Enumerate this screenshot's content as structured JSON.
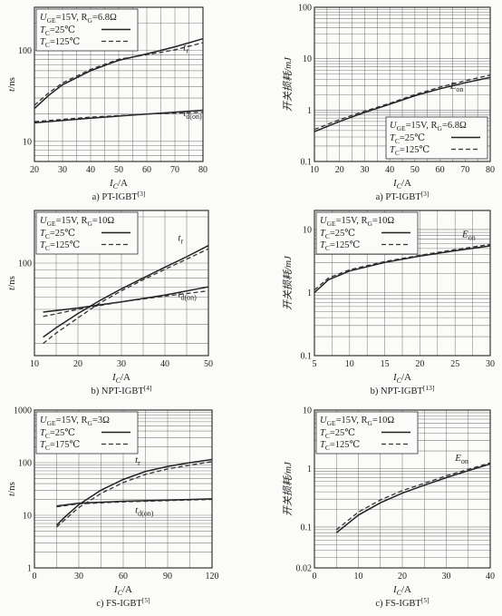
{
  "chart_data": [
    {
      "type": "line",
      "caption": "a) PT-IGBT",
      "caption_ref": "[3]",
      "xlabel": "I",
      "xlabel_sub": "C",
      "xlabel_unit": "/A",
      "ylabel": "t",
      "ylabel_unit": "/ns",
      "xlim": [
        20,
        80
      ],
      "xticks": [
        20,
        30,
        40,
        50,
        60,
        70,
        80
      ],
      "ylog": true,
      "ylim": [
        6,
        300
      ],
      "yticks": [
        10,
        100
      ],
      "yticklabels": [
        "10",
        "100"
      ],
      "legend": {
        "position": "top-left",
        "line1": "U",
        "line1_sub": "GE",
        "line1_rest": "=15V, R",
        "line1_sub2": "G",
        "line1_rest2": "=6.8Ω",
        "entries": [
          {
            "label": "T",
            "sub": "C",
            "rest": "=25℃",
            "style": "solid"
          },
          {
            "label": "T",
            "sub": "C",
            "rest": "=125℃",
            "style": "dashed"
          }
        ]
      },
      "annotations": [
        {
          "text": "t",
          "sub": "r",
          "x": 73,
          "y": 100
        },
        {
          "text": "t",
          "sub": "d(on)",
          "x": 73,
          "y": 19
        }
      ],
      "series": [
        {
          "curve": "t_r",
          "style": "solid",
          "x": [
            20,
            25,
            30,
            40,
            50,
            60,
            70,
            80
          ],
          "y": [
            23,
            32,
            42,
            60,
            78,
            92,
            110,
            135
          ]
        },
        {
          "curve": "t_r",
          "style": "dashed",
          "x": [
            20,
            25,
            30,
            40,
            50,
            60,
            70,
            80
          ],
          "y": [
            25,
            34,
            44,
            62,
            80,
            90,
            102,
            122
          ]
        },
        {
          "curve": "t_d(on)",
          "style": "solid",
          "x": [
            20,
            40,
            60,
            80
          ],
          "y": [
            16,
            18,
            20,
            22
          ]
        },
        {
          "curve": "t_d(on)",
          "style": "dashed",
          "x": [
            20,
            40,
            60,
            80
          ],
          "y": [
            16.5,
            18.5,
            20,
            21
          ]
        }
      ]
    },
    {
      "type": "line",
      "caption": "a) PT-IGBT",
      "caption_ref": "[3]",
      "xlabel": "I",
      "xlabel_sub": "C",
      "xlabel_unit": "/A",
      "ylabel": "开关损耗/mJ",
      "xlim": [
        10,
        80
      ],
      "xticks": [
        10,
        20,
        30,
        40,
        50,
        60,
        70,
        80
      ],
      "ylog": true,
      "ylim": [
        0.1,
        100
      ],
      "yticks": [
        0.1,
        1,
        10,
        100
      ],
      "yticklabels": [
        "0.1",
        "1",
        "10",
        "100"
      ],
      "legend": {
        "position": "bottom-right",
        "line1": "U",
        "line1_sub": "GE",
        "line1_rest": "=15V, R",
        "line1_sub2": "G",
        "line1_rest2": "=6.8Ω",
        "entries": [
          {
            "label": "T",
            "sub": "C",
            "rest": "=25℃",
            "style": "solid"
          },
          {
            "label": "T",
            "sub": "C",
            "rest": "=125℃",
            "style": "dashed"
          }
        ]
      },
      "annotations": [
        {
          "text": "E",
          "sub": "on",
          "x": 64,
          "y": 2.6
        }
      ],
      "series": [
        {
          "curve": "E_on",
          "style": "solid",
          "x": [
            10,
            20,
            30,
            40,
            50,
            60,
            70,
            80
          ],
          "y": [
            0.38,
            0.6,
            0.9,
            1.3,
            1.9,
            2.6,
            3.4,
            4.3
          ]
        },
        {
          "curve": "E_on",
          "style": "dashed",
          "x": [
            10,
            20,
            30,
            40,
            50,
            60,
            70,
            80
          ],
          "y": [
            0.42,
            0.65,
            0.95,
            1.35,
            2.0,
            2.8,
            3.7,
            4.8
          ]
        }
      ]
    },
    {
      "type": "line",
      "caption": "b) NPT-IGBT",
      "caption_ref": "[4]",
      "xlabel": "I",
      "xlabel_sub": "C",
      "xlabel_unit": "/A",
      "ylabel": "t",
      "ylabel_unit": "/ns",
      "xlim": [
        10,
        50
      ],
      "xticks": [
        10,
        20,
        30,
        40,
        50
      ],
      "ylog": true,
      "ylim": [
        25,
        220
      ],
      "yticks": [
        100
      ],
      "yticklabels": [
        "100"
      ],
      "legend": {
        "position": "top-left",
        "line1": "U",
        "line1_sub": "GE",
        "line1_rest": "=15V, R",
        "line1_sub2": "G",
        "line1_rest2": "=10Ω",
        "entries": [
          {
            "label": "T",
            "sub": "C",
            "rest": "=25℃",
            "style": "solid"
          },
          {
            "label": "T",
            "sub": "C",
            "rest": "=125℃",
            "style": "dashed"
          }
        ]
      },
      "annotations": [
        {
          "text": "t",
          "sub": "r",
          "x": 43,
          "y": 140
        },
        {
          "text": "t",
          "sub": "d(on)",
          "x": 43,
          "y": 60
        }
      ],
      "series": [
        {
          "curve": "t_r",
          "style": "solid",
          "x": [
            12,
            15,
            20,
            25,
            30,
            35,
            40,
            45,
            50
          ],
          "y": [
            33,
            38,
            47,
            57,
            68,
            80,
            94,
            110,
            130
          ]
        },
        {
          "curve": "t_r",
          "style": "dashed",
          "x": [
            12,
            15,
            20,
            25,
            30,
            35,
            40,
            45,
            50
          ],
          "y": [
            30,
            35,
            44,
            55,
            66,
            78,
            91,
            106,
            124
          ]
        },
        {
          "curve": "t_d(on)",
          "style": "solid",
          "x": [
            12,
            20,
            30,
            40,
            50
          ],
          "y": [
            48,
            51,
            56,
            62,
            70
          ]
        },
        {
          "curve": "t_d(on)",
          "style": "dashed",
          "x": [
            12,
            20,
            30,
            40,
            50
          ],
          "y": [
            45,
            50,
            56,
            61,
            66
          ]
        }
      ]
    },
    {
      "type": "line",
      "caption": "b) NPT-IGBT",
      "caption_ref": "[13]",
      "xlabel": "I",
      "xlabel_sub": "C",
      "xlabel_unit": "/A",
      "ylabel": "开关损耗/mJ",
      "xlim": [
        5,
        30
      ],
      "xticks": [
        5,
        10,
        15,
        20,
        25,
        30
      ],
      "ylog": true,
      "ylim": [
        0.1,
        20
      ],
      "yticks": [
        0.1,
        1,
        10
      ],
      "yticklabels": [
        "0.1",
        "1",
        "10"
      ],
      "legend": {
        "position": "top-left",
        "line1": "U",
        "line1_sub": "GE",
        "line1_rest": "=15V, R",
        "line1_sub2": "G",
        "line1_rest2": "=10Ω",
        "entries": [
          {
            "label": "T",
            "sub": "C",
            "rest": "=25℃",
            "style": "solid"
          },
          {
            "label": "T",
            "sub": "C",
            "rest": "=125℃",
            "style": "dashed"
          }
        ]
      },
      "annotations": [
        {
          "text": "E",
          "sub": "on",
          "x": 26,
          "y": 7.5
        }
      ],
      "series": [
        {
          "curve": "E_on",
          "style": "solid",
          "x": [
            5,
            7,
            10,
            15,
            20,
            25,
            30
          ],
          "y": [
            1.0,
            1.6,
            2.2,
            3.0,
            3.8,
            4.6,
            5.5
          ]
        },
        {
          "curve": "E_on",
          "style": "dashed",
          "x": [
            5,
            7,
            10,
            15,
            20,
            25,
            30
          ],
          "y": [
            1.1,
            1.7,
            2.3,
            3.1,
            3.9,
            4.8,
            5.8
          ]
        }
      ]
    },
    {
      "type": "line",
      "caption": "c) FS-IGBT",
      "caption_ref": "[5]",
      "xlabel": "I",
      "xlabel_sub": "C",
      "xlabel_unit": "/A",
      "ylabel": "t",
      "ylabel_unit": "/ns",
      "xlim": [
        0,
        120
      ],
      "xticks": [
        0,
        30,
        60,
        90,
        120
      ],
      "ylog": true,
      "ylim": [
        1,
        1000
      ],
      "yticks": [
        1,
        10,
        100,
        1000
      ],
      "yticklabels": [
        "1",
        "10",
        "100",
        "1000"
      ],
      "legend": {
        "position": "top-left",
        "line1": "U",
        "line1_sub": "GE",
        "line1_rest": "=15V, R",
        "line1_sub2": "G",
        "line1_rest2": "=3Ω",
        "entries": [
          {
            "label": "T",
            "sub": "C",
            "rest": "=25℃",
            "style": "solid"
          },
          {
            "label": "T",
            "sub": "C",
            "rest": "=175℃",
            "style": "dashed"
          }
        ]
      },
      "annotations": [
        {
          "text": "t",
          "sub": "r",
          "x": 68,
          "y": 100
        },
        {
          "text": "t",
          "sub": "d(on)",
          "x": 68,
          "y": 11
        }
      ],
      "series": [
        {
          "curve": "t_r",
          "style": "solid",
          "x": [
            15,
            20,
            30,
            45,
            60,
            75,
            90,
            105,
            120
          ],
          "y": [
            6.5,
            9,
            16,
            30,
            48,
            68,
            85,
            100,
            115
          ]
        },
        {
          "curve": "t_r",
          "style": "dashed",
          "x": [
            15,
            20,
            30,
            45,
            60,
            75,
            90,
            105,
            120
          ],
          "y": [
            6,
            8,
            14,
            26,
            42,
            60,
            76,
            90,
            105
          ]
        },
        {
          "curve": "t_d(on)",
          "style": "solid",
          "x": [
            15,
            30,
            60,
            90,
            120
          ],
          "y": [
            15,
            17,
            18.5,
            19.5,
            20.5
          ]
        },
        {
          "curve": "t_d(on)",
          "style": "dashed",
          "x": [
            15,
            30,
            60,
            90,
            120
          ],
          "y": [
            14.5,
            16.5,
            18,
            19,
            20
          ]
        }
      ]
    },
    {
      "type": "line",
      "caption": "c) FS-IGBT",
      "caption_ref": "[5]",
      "xlabel": "I",
      "xlabel_sub": "C",
      "xlabel_unit": "/A",
      "ylabel": "开关损耗/mJ",
      "xlim": [
        0,
        40
      ],
      "xticks": [
        0,
        10,
        20,
        30,
        40
      ],
      "ylog": true,
      "ylim": [
        0.02,
        10
      ],
      "yticks": [
        0.02,
        0.1,
        1,
        10
      ],
      "yticklabels": [
        "0.02",
        "0.1",
        "1",
        "10"
      ],
      "legend": {
        "position": "top-left",
        "line1": "U",
        "line1_sub": "GE",
        "line1_rest": "=15V, R",
        "line1_sub2": "G",
        "line1_rest2": "=10Ω",
        "entries": [
          {
            "label": "T",
            "sub": "C",
            "rest": "=25℃",
            "style": "solid"
          },
          {
            "label": "T",
            "sub": "C",
            "rest": "=125℃",
            "style": "dashed"
          }
        ]
      },
      "annotations": [
        {
          "text": "E",
          "sub": "on",
          "x": 32,
          "y": 1.35
        }
      ],
      "series": [
        {
          "curve": "E_on",
          "style": "solid",
          "x": [
            5,
            10,
            15,
            20,
            25,
            30,
            35,
            40
          ],
          "y": [
            0.08,
            0.16,
            0.26,
            0.38,
            0.52,
            0.7,
            0.92,
            1.2
          ]
        },
        {
          "curve": "E_on",
          "style": "dashed",
          "x": [
            5,
            10,
            15,
            20,
            25,
            30,
            35,
            40
          ],
          "y": [
            0.09,
            0.18,
            0.29,
            0.42,
            0.56,
            0.75,
            0.97,
            1.25
          ]
        }
      ]
    }
  ]
}
